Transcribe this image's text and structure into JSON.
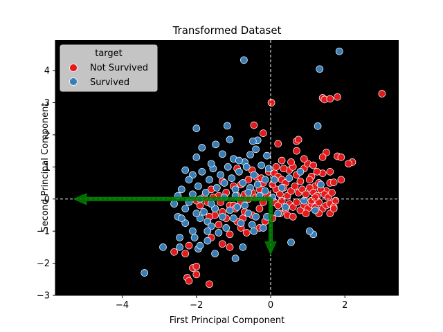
{
  "chart_data": {
    "type": "scatter",
    "title": "Transformed Dataset",
    "xlabel": "First Principal Component",
    "ylabel": "Second Principal Component",
    "xlim": [
      -5.8,
      3.45
    ],
    "ylim": [
      -3.0,
      4.95
    ],
    "xticks": [
      -4,
      -2,
      0,
      2
    ],
    "yticks": [
      -3,
      -2,
      -1,
      0,
      1,
      2,
      3,
      4
    ],
    "tick_labels_x": [
      "−4",
      "−2",
      "0",
      "2"
    ],
    "tick_labels_y": [
      "−3",
      "−2",
      "−1",
      "0",
      "1",
      "2",
      "3",
      "4"
    ],
    "background": "#000000",
    "legend": {
      "title": "target",
      "placement": "top-left",
      "entries": [
        {
          "label": "Not Survived",
          "color": "#e41a1c"
        },
        {
          "label": "Survived",
          "color": "#377eb8"
        }
      ]
    },
    "reference_lines": {
      "x": 0,
      "y": 0,
      "color": "#ffffff",
      "style": "dashed"
    },
    "arrows": [
      {
        "from": [
          0,
          0
        ],
        "to": [
          -5.3,
          0
        ],
        "color": "#008000"
      },
      {
        "from": [
          0,
          0
        ],
        "to": [
          0,
          -1.72
        ],
        "color": "#008000"
      }
    ],
    "series": [
      {
        "name": "Not Survived",
        "color": "#e41a1c",
        "points": [
          [
            3.0,
            3.28
          ],
          [
            1.8,
            3.18
          ],
          [
            1.4,
            3.15
          ],
          [
            1.45,
            3.1
          ],
          [
            1.6,
            3.12
          ],
          [
            0.02,
            3.0
          ],
          [
            -0.45,
            2.3
          ],
          [
            -0.2,
            2.05
          ],
          [
            0.2,
            1.72
          ],
          [
            0.7,
            1.8
          ],
          [
            0.75,
            1.85
          ],
          [
            0.7,
            1.5
          ],
          [
            1.5,
            1.45
          ],
          [
            1.4,
            1.3
          ],
          [
            1.8,
            1.33
          ],
          [
            1.9,
            1.3
          ],
          [
            2.2,
            1.15
          ],
          [
            2.1,
            1.1
          ],
          [
            1.6,
            0.85
          ],
          [
            1.6,
            0.5
          ],
          [
            1.9,
            0.6
          ],
          [
            1.7,
            0.52
          ],
          [
            -0.05,
            0.85
          ],
          [
            0.1,
            0.8
          ],
          [
            0.2,
            0.7
          ],
          [
            0.3,
            0.6
          ],
          [
            0.4,
            0.5
          ],
          [
            0.5,
            0.9
          ],
          [
            0.6,
            1.0
          ],
          [
            0.7,
            0.75
          ],
          [
            0.8,
            0.55
          ],
          [
            0.9,
            0.95
          ],
          [
            1.0,
            1.1
          ],
          [
            1.1,
            0.7
          ],
          [
            1.2,
            0.4
          ],
          [
            1.3,
            0.5
          ],
          [
            1.4,
            0.8
          ],
          [
            1.5,
            0.25
          ],
          [
            0.15,
            0.3
          ],
          [
            0.25,
            0.15
          ],
          [
            0.35,
            0.35
          ],
          [
            0.45,
            0.1
          ],
          [
            0.55,
            0.25
          ],
          [
            0.65,
            0.4
          ],
          [
            0.75,
            0.2
          ],
          [
            0.85,
            0.3
          ],
          [
            0.95,
            0.15
          ],
          [
            1.05,
            0.35
          ],
          [
            1.15,
            0.2
          ],
          [
            1.25,
            0.1
          ],
          [
            1.35,
            0.3
          ],
          [
            1.45,
            0.15
          ],
          [
            1.55,
            0.05
          ],
          [
            1.65,
            0.2
          ],
          [
            0.1,
            -0.1
          ],
          [
            0.2,
            -0.2
          ],
          [
            0.3,
            -0.05
          ],
          [
            0.4,
            -0.3
          ],
          [
            0.5,
            -0.15
          ],
          [
            0.6,
            -0.25
          ],
          [
            0.7,
            -0.1
          ],
          [
            0.8,
            -0.35
          ],
          [
            0.9,
            -0.2
          ],
          [
            1.0,
            -0.3
          ],
          [
            1.1,
            -0.15
          ],
          [
            1.2,
            -0.25
          ],
          [
            1.3,
            -0.1
          ],
          [
            1.4,
            -0.3
          ],
          [
            1.5,
            -0.2
          ],
          [
            1.6,
            -0.15
          ],
          [
            1.7,
            -0.25
          ],
          [
            1.75,
            -0.05
          ],
          [
            1.1,
            -0.05
          ],
          [
            1.2,
            0.05
          ],
          [
            0.95,
            -0.45
          ],
          [
            1.3,
            -0.45
          ],
          [
            1.6,
            -0.45
          ],
          [
            1.7,
            -0.3
          ],
          [
            -0.2,
            0.5
          ],
          [
            -0.3,
            0.3
          ],
          [
            -0.4,
            0.7
          ],
          [
            -0.5,
            0.2
          ],
          [
            -0.6,
            0.6
          ],
          [
            -0.7,
            0.15
          ],
          [
            -0.8,
            0.45
          ],
          [
            -0.9,
            0.1
          ],
          [
            -1.0,
            0.4
          ],
          [
            -1.1,
            -0.2
          ],
          [
            -1.2,
            0.2
          ],
          [
            -1.3,
            -0.4
          ],
          [
            -1.4,
            0.1
          ],
          [
            -1.5,
            -0.3
          ],
          [
            -1.6,
            0.3
          ],
          [
            -1.7,
            -0.1
          ],
          [
            -0.3,
            -0.3
          ],
          [
            -0.5,
            -0.5
          ],
          [
            -0.7,
            -0.4
          ],
          [
            -0.9,
            -0.7
          ],
          [
            -1.0,
            -0.2
          ],
          [
            -1.2,
            -0.6
          ],
          [
            -1.4,
            -0.8
          ],
          [
            -1.5,
            -0.5
          ],
          [
            -0.6,
            0.0
          ],
          [
            -0.8,
            -0.1
          ],
          [
            -0.4,
            0.05
          ],
          [
            -0.2,
            -0.1
          ],
          [
            -1.8,
            0.05
          ],
          [
            -1.9,
            -0.2
          ],
          [
            -2.0,
            -0.05
          ],
          [
            -1.65,
            -0.55
          ],
          [
            -0.1,
            0.15
          ],
          [
            0.05,
            0.45
          ],
          [
            0.15,
            1.0
          ],
          [
            0.3,
            1.2
          ],
          [
            0.55,
            1.15
          ],
          [
            0.9,
            1.25
          ],
          [
            1.15,
            1.05
          ],
          [
            0.45,
            -0.5
          ],
          [
            0.6,
            -0.55
          ],
          [
            0.25,
            -0.45
          ],
          [
            0.05,
            -0.6
          ],
          [
            -0.15,
            -0.7
          ],
          [
            -1.1,
            -1.1
          ],
          [
            -1.3,
            -1.4
          ],
          [
            -1.1,
            -1.5
          ],
          [
            -1.6,
            -1.2
          ],
          [
            -2.2,
            -1.45
          ],
          [
            -2.6,
            -1.65
          ],
          [
            -2.3,
            -1.7
          ],
          [
            -2.1,
            -2.15
          ],
          [
            -2.0,
            -2.1
          ],
          [
            -2.0,
            -2.35
          ],
          [
            -2.25,
            -2.45
          ],
          [
            -2.2,
            -2.55
          ],
          [
            -1.65,
            -2.65
          ],
          [
            -0.8,
            -0.9
          ],
          [
            -0.65,
            -1.05
          ],
          [
            -0.3,
            -0.9
          ],
          [
            -0.9,
            0.95
          ],
          [
            -0.5,
            0.9
          ],
          [
            -1.3,
            0.55
          ],
          [
            -0.95,
            -0.3
          ],
          [
            -1.35,
            -0.1
          ],
          [
            -0.75,
            -0.6
          ],
          [
            -1.55,
            0.05
          ],
          [
            -0.25,
            0.65
          ],
          [
            0.35,
            0.95
          ],
          [
            1.05,
            0.6
          ],
          [
            1.25,
            0.85
          ]
        ]
      },
      {
        "name": "Survived",
        "color": "#377eb8",
        "points": [
          [
            1.85,
            4.6
          ],
          [
            -0.72,
            4.33
          ],
          [
            1.32,
            4.05
          ],
          [
            1.27,
            2.27
          ],
          [
            -1.17,
            2.28
          ],
          [
            -2.0,
            2.2
          ],
          [
            -1.1,
            1.85
          ],
          [
            -0.35,
            1.83
          ],
          [
            -0.48,
            1.8
          ],
          [
            -1.85,
            1.6
          ],
          [
            -1.48,
            1.7
          ],
          [
            -0.4,
            1.55
          ],
          [
            -0.55,
            1.38
          ],
          [
            -2.0,
            1.3
          ],
          [
            -1.3,
            1.4
          ],
          [
            -0.1,
            1.35
          ],
          [
            -1.0,
            1.25
          ],
          [
            -0.7,
            1.15
          ],
          [
            -2.1,
            0.75
          ],
          [
            -2.2,
            0.6
          ],
          [
            -2.4,
            0.3
          ],
          [
            -2.5,
            0.1
          ],
          [
            -2.6,
            -0.15
          ],
          [
            -2.5,
            -0.55
          ],
          [
            -2.3,
            -0.75
          ],
          [
            -2.4,
            -0.6
          ],
          [
            -2.1,
            -1.0
          ],
          [
            -2.05,
            -1.2
          ],
          [
            -2.45,
            -1.2
          ],
          [
            -2.45,
            -1.5
          ],
          [
            -2.9,
            -1.5
          ],
          [
            -1.7,
            -1.3
          ],
          [
            -1.95,
            -1.55
          ],
          [
            -1.9,
            -1.45
          ],
          [
            -1.5,
            -1.7
          ],
          [
            -0.75,
            -1.5
          ],
          [
            -0.95,
            -1.85
          ],
          [
            -3.4,
            -2.3
          ],
          [
            0.55,
            -1.35
          ],
          [
            1.15,
            -1.1
          ],
          [
            1.05,
            -1.0
          ],
          [
            -1.9,
            -0.6
          ],
          [
            -1.8,
            -0.4
          ],
          [
            -1.7,
            -0.7
          ],
          [
            -1.6,
            -0.85
          ],
          [
            -1.5,
            -0.3
          ],
          [
            -1.4,
            -1.05
          ],
          [
            -1.3,
            -0.55
          ],
          [
            -1.2,
            -0.9
          ],
          [
            -1.1,
            -0.35
          ],
          [
            -1.0,
            -0.6
          ],
          [
            -0.9,
            -0.25
          ],
          [
            -0.8,
            -0.75
          ],
          [
            -0.7,
            -0.2
          ],
          [
            -0.6,
            -0.45
          ],
          [
            -0.5,
            -0.8
          ],
          [
            -0.4,
            -0.55
          ],
          [
            -1.95,
            0.4
          ],
          [
            -1.85,
            0.85
          ],
          [
            -1.75,
            0.2
          ],
          [
            -1.65,
            0.6
          ],
          [
            -1.55,
            0.95
          ],
          [
            -1.45,
            0.35
          ],
          [
            -1.35,
            0.75
          ],
          [
            -1.25,
            0.5
          ],
          [
            -1.15,
            1.0
          ],
          [
            -1.05,
            0.65
          ],
          [
            -0.95,
            0.3
          ],
          [
            -0.85,
            0.85
          ],
          [
            -0.75,
            0.5
          ],
          [
            -0.65,
            1.0
          ],
          [
            -0.55,
            0.35
          ],
          [
            -0.45,
            0.75
          ],
          [
            -0.35,
            0.45
          ],
          [
            -0.25,
            1.05
          ],
          [
            -0.15,
            0.6
          ],
          [
            -0.05,
            0.95
          ],
          [
            -0.15,
            0.25
          ],
          [
            -2.3,
            -0.3
          ],
          [
            -2.2,
            -0.1
          ],
          [
            -2.1,
            0.15
          ],
          [
            -2.0,
            -0.45
          ],
          [
            -1.9,
            0.0
          ],
          [
            -1.6,
            -0.15
          ],
          [
            -1.25,
            0.05
          ],
          [
            -0.95,
            0.1
          ],
          [
            -0.6,
            0.2
          ],
          [
            -0.3,
            0.1
          ],
          [
            0.05,
            0.05
          ],
          [
            -2.3,
            0.9
          ],
          [
            -1.6,
            1.1
          ],
          [
            -0.85,
            1.2
          ],
          [
            0.1,
            0.6
          ],
          [
            0.3,
            0.35
          ],
          [
            0.5,
            0.65
          ],
          [
            0.8,
            0.85
          ],
          [
            1.35,
            0.45
          ],
          [
            0.4,
            -0.25
          ],
          [
            0.9,
            -0.05
          ],
          [
            1.2,
            -0.35
          ],
          [
            0.2,
            -0.45
          ],
          [
            -0.1,
            -0.55
          ],
          [
            -0.2,
            -0.9
          ],
          [
            -0.45,
            -1.0
          ],
          [
            -1.7,
            -1.0
          ]
        ]
      }
    ]
  }
}
